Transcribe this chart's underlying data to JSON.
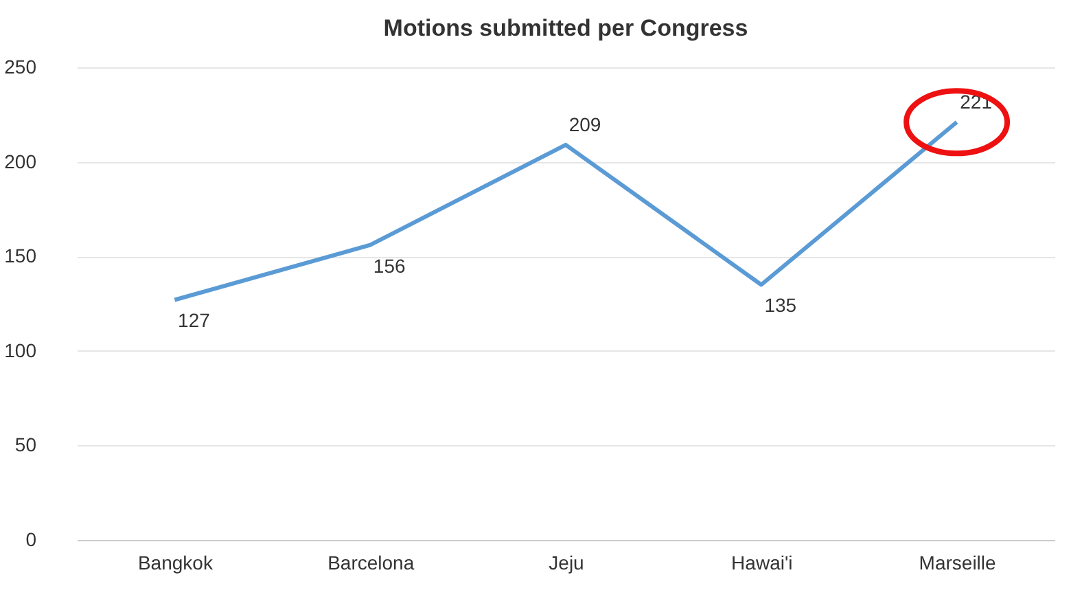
{
  "chart_data": {
    "type": "line",
    "title": "Motions submitted per Congress",
    "categories": [
      "Bangkok",
      "Barcelona",
      "Jeju",
      "Hawai'i",
      "Marseille"
    ],
    "series": [
      {
        "color": "#5b9bd5",
        "values": [
          127,
          156,
          209,
          135,
          221
        ]
      }
    ],
    "ylim": [
      0,
      250
    ],
    "yticks": [
      0,
      50,
      100,
      150,
      200,
      250
    ],
    "grid": "y",
    "data_labels": true,
    "marker": "none",
    "line_style": "solid"
  }
}
